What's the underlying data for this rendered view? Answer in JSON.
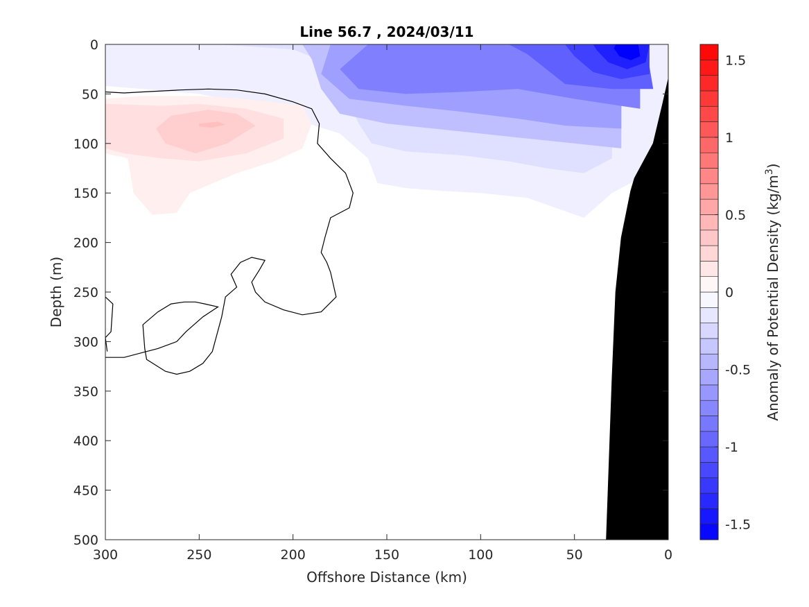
{
  "chart_data": {
    "type": "heatmap",
    "title": "Line 56.7 , 2024/03/11",
    "xlabel": "Offshore Distance (km)",
    "ylabel": "Depth (m)",
    "xlim": [
      300,
      0
    ],
    "ylim": [
      500,
      0
    ],
    "x_reversed": true,
    "y_reversed": true,
    "xticks": [
      "300",
      "250",
      "200",
      "150",
      "100",
      "50",
      "0"
    ],
    "yticks": [
      "0",
      "50",
      "100",
      "150",
      "200",
      "250",
      "300",
      "350",
      "400",
      "450",
      "500"
    ],
    "colorbar": {
      "label": "Anomaly of Potential Density (kg/m",
      "label_superscript": "3",
      "label_suffix": ")",
      "ticks": [
        "1.5",
        "1",
        "0.5",
        "0",
        "-0.5",
        "-1",
        "-1.5"
      ],
      "range": [
        -1.6,
        1.6
      ],
      "step": 0.1,
      "negative_color": "#0000ff",
      "positive_color": "#ff0000",
      "neutral_color": "#ffffff"
    },
    "fields": [
      {
        "sign": "negative",
        "level": -0.1,
        "outline": [
          [
            300,
            0
          ],
          [
            0,
            0
          ],
          [
            0,
            120
          ],
          [
            30,
            150
          ],
          [
            45,
            175
          ],
          [
            60,
            165
          ],
          [
            75,
            155
          ],
          [
            100,
            150
          ],
          [
            120,
            148
          ],
          [
            140,
            145
          ],
          [
            155,
            140
          ],
          [
            160,
            115
          ],
          [
            175,
            90
          ],
          [
            200,
            75
          ],
          [
            225,
            60
          ],
          [
            250,
            50
          ],
          [
            280,
            45
          ],
          [
            300,
            42
          ]
        ]
      },
      {
        "sign": "negative",
        "level": -0.2,
        "outline": [
          [
            270,
            0
          ],
          [
            30,
            0
          ],
          [
            30,
            115
          ],
          [
            45,
            130
          ],
          [
            65,
            125
          ],
          [
            85,
            118
          ],
          [
            110,
            112
          ],
          [
            140,
            108
          ],
          [
            158,
            100
          ],
          [
            165,
            80
          ],
          [
            172,
            50
          ],
          [
            180,
            20
          ],
          [
            200,
            5
          ],
          [
            240,
            0
          ]
        ]
      },
      {
        "sign": "negative",
        "level": -0.4,
        "outline": [
          [
            195,
            0
          ],
          [
            25,
            0
          ],
          [
            25,
            105
          ],
          [
            50,
            100
          ],
          [
            75,
            95
          ],
          [
            100,
            90
          ],
          [
            125,
            85
          ],
          [
            150,
            80
          ],
          [
            175,
            70
          ],
          [
            185,
            45
          ],
          [
            190,
            15
          ]
        ]
      },
      {
        "sign": "negative",
        "level": -0.6,
        "outline": [
          [
            180,
            0
          ],
          [
            25,
            0
          ],
          [
            25,
            85
          ],
          [
            55,
            82
          ],
          [
            80,
            75
          ],
          [
            110,
            68
          ],
          [
            140,
            62
          ],
          [
            170,
            55
          ],
          [
            185,
            30
          ]
        ]
      },
      {
        "sign": "negative",
        "level": -0.8,
        "outline": [
          [
            160,
            0
          ],
          [
            15,
            0
          ],
          [
            15,
            65
          ],
          [
            50,
            55
          ],
          [
            80,
            45
          ],
          [
            110,
            48
          ],
          [
            140,
            50
          ],
          [
            165,
            45
          ],
          [
            175,
            25
          ]
        ]
      },
      {
        "sign": "negative",
        "level": -1.0,
        "outline": [
          [
            85,
            0
          ],
          [
            12,
            0
          ],
          [
            8,
            45
          ],
          [
            30,
            45
          ],
          [
            55,
            40
          ],
          [
            65,
            25
          ],
          [
            75,
            10
          ]
        ]
      },
      {
        "sign": "negative",
        "level": -1.2,
        "outline": [
          [
            55,
            0
          ],
          [
            10,
            0
          ],
          [
            10,
            30
          ],
          [
            25,
            35
          ],
          [
            40,
            28
          ],
          [
            50,
            12
          ]
        ]
      },
      {
        "sign": "negative",
        "level": -1.4,
        "outline": [
          [
            40,
            0
          ],
          [
            10,
            0
          ],
          [
            12,
            18
          ],
          [
            22,
            25
          ],
          [
            32,
            18
          ],
          [
            38,
            6
          ]
        ]
      },
      {
        "sign": "negative",
        "level": -1.6,
        "outline": [
          [
            28,
            0
          ],
          [
            16,
            0
          ],
          [
            15,
            12
          ],
          [
            20,
            16
          ],
          [
            26,
            12
          ],
          [
            29,
            4
          ]
        ]
      },
      {
        "sign": "positive",
        "level": 0.1,
        "outline": [
          [
            300,
            55
          ],
          [
            280,
            52
          ],
          [
            250,
            52
          ],
          [
            220,
            56
          ],
          [
            195,
            62
          ],
          [
            190,
            80
          ],
          [
            195,
            105
          ],
          [
            210,
            118
          ],
          [
            230,
            130
          ],
          [
            255,
            150
          ],
          [
            262,
            170
          ],
          [
            275,
            172
          ],
          [
            285,
            150
          ],
          [
            288,
            115
          ],
          [
            300,
            110
          ]
        ]
      },
      {
        "sign": "positive",
        "level": 0.2,
        "outline": [
          [
            300,
            60
          ],
          [
            270,
            62
          ],
          [
            250,
            60
          ],
          [
            225,
            65
          ],
          [
            205,
            75
          ],
          [
            205,
            95
          ],
          [
            225,
            110
          ],
          [
            250,
            118
          ],
          [
            270,
            115
          ],
          [
            290,
            110
          ],
          [
            300,
            105
          ]
        ]
      },
      {
        "sign": "positive",
        "level": 0.3,
        "outline": [
          [
            265,
            72
          ],
          [
            245,
            66
          ],
          [
            230,
            70
          ],
          [
            220,
            82
          ],
          [
            235,
            100
          ],
          [
            252,
            110
          ],
          [
            268,
            100
          ],
          [
            273,
            85
          ]
        ]
      },
      {
        "sign": "positive",
        "level": 0.4,
        "outline": [
          [
            250,
            80
          ],
          [
            240,
            78
          ],
          [
            236,
            81
          ],
          [
            243,
            84
          ],
          [
            250,
            83
          ]
        ]
      }
    ],
    "zero_contours": [
      [
        [
          300,
          48
        ],
        [
          290,
          49
        ],
        [
          280,
          48
        ],
        [
          260,
          46
        ],
        [
          245,
          45
        ],
        [
          230,
          46
        ],
        [
          215,
          50
        ],
        [
          200,
          58
        ],
        [
          190,
          65
        ],
        [
          186,
          80
        ],
        [
          187,
          100
        ],
        [
          180,
          115
        ],
        [
          172,
          130
        ],
        [
          168,
          150
        ],
        [
          170,
          165
        ],
        [
          180,
          175
        ],
        [
          183,
          195
        ],
        [
          185,
          210
        ],
        [
          182,
          220
        ],
        [
          180,
          230
        ],
        [
          177,
          255
        ],
        [
          185,
          270
        ],
        [
          195,
          273
        ],
        [
          205,
          268
        ],
        [
          215,
          260
        ],
        [
          220,
          250
        ],
        [
          222,
          240
        ],
        [
          218,
          228
        ],
        [
          215,
          218
        ],
        [
          222,
          215
        ],
        [
          228,
          220
        ],
        [
          233,
          232
        ],
        [
          230,
          245
        ],
        [
          236,
          255
        ],
        [
          238,
          275
        ],
        [
          243,
          310
        ],
        [
          248,
          322
        ],
        [
          255,
          330
        ],
        [
          262,
          333
        ],
        [
          268,
          330
        ],
        [
          278,
          318
        ],
        [
          279,
          307
        ],
        [
          280,
          283
        ],
        [
          272,
          270
        ],
        [
          265,
          262
        ],
        [
          258,
          260
        ],
        [
          252,
          260
        ],
        [
          247,
          262
        ],
        [
          240,
          265
        ],
        [
          248,
          275
        ],
        [
          257,
          290
        ],
        [
          262,
          300
        ],
        [
          272,
          307
        ],
        [
          280,
          311
        ],
        [
          290,
          316
        ],
        [
          300,
          316
        ]
      ],
      [
        [
          300,
          255
        ],
        [
          296,
          262
        ],
        [
          297,
          290
        ],
        [
          300,
          296
        ],
        [
          299,
          310
        ]
      ]
    ],
    "bathymetry": [
      [
        0,
        35
      ],
      [
        3,
        60
      ],
      [
        8,
        100
      ],
      [
        18,
        135
      ],
      [
        20,
        148
      ],
      [
        25,
        195
      ],
      [
        28,
        250
      ],
      [
        30,
        340
      ],
      [
        33,
        500
      ]
    ]
  }
}
